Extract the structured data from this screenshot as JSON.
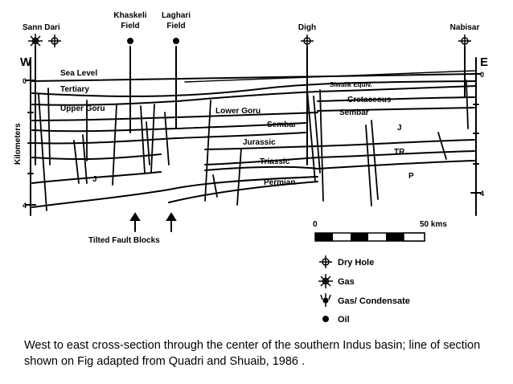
{
  "wells": [
    {
      "name": "Sann Dari",
      "label_lines": [
        "Sann Dari"
      ],
      "symbols": [
        "gas",
        "dry-hole"
      ]
    },
    {
      "name": "Khaskeli Field",
      "label_lines": [
        "Khaskeli",
        "Field"
      ],
      "symbols": [
        "oil"
      ]
    },
    {
      "name": "Laghari Field",
      "label_lines": [
        "Laghari",
        "Field"
      ],
      "symbols": [
        "oil"
      ]
    },
    {
      "name": "Digh",
      "label_lines": [
        "Digh"
      ],
      "symbols": [
        "dry-hole"
      ]
    },
    {
      "name": "Nabisar",
      "label_lines": [
        "Nabisar"
      ],
      "symbols": [
        "dry-hole"
      ]
    }
  ],
  "axis": {
    "left_direction": "W",
    "right_direction": "E",
    "ylabel": "Kilometers",
    "left_ticks": [
      "0",
      "4"
    ],
    "right_ticks": [
      "0",
      "4"
    ]
  },
  "units": {
    "sea_level": "Sea Level",
    "tertiary": "Tertiary",
    "upper_goru": "Upper Goru",
    "lower_goru": "Lower Goru",
    "sembar_mid": "Sembar",
    "jurassic": "Jurassic",
    "triassic": "Triassic",
    "permian": "Permian",
    "siwalik": "Siwalik Equiv.",
    "cretaceous": "Cretaceous",
    "sembar_east": "Sembar",
    "j_east": "J",
    "tr_east": "TR",
    "p_east": "P",
    "j_west": "J"
  },
  "annotations": {
    "tilted_fault_blocks": "Tilted Fault Blocks"
  },
  "scale_bar": {
    "start_label": "0",
    "end_label": "50 kms"
  },
  "legend": [
    {
      "symbol": "dry-hole",
      "label": "Dry Hole"
    },
    {
      "symbol": "gas",
      "label": "Gas"
    },
    {
      "symbol": "gas-condensate",
      "label": "Gas/ Condensate"
    },
    {
      "symbol": "oil",
      "label": "Oil"
    }
  ],
  "caption": "West to east cross-section through the center of the southern Indus basin; line of section shown on Fig adapted from Quadri and Shuaib, 1986 ."
}
